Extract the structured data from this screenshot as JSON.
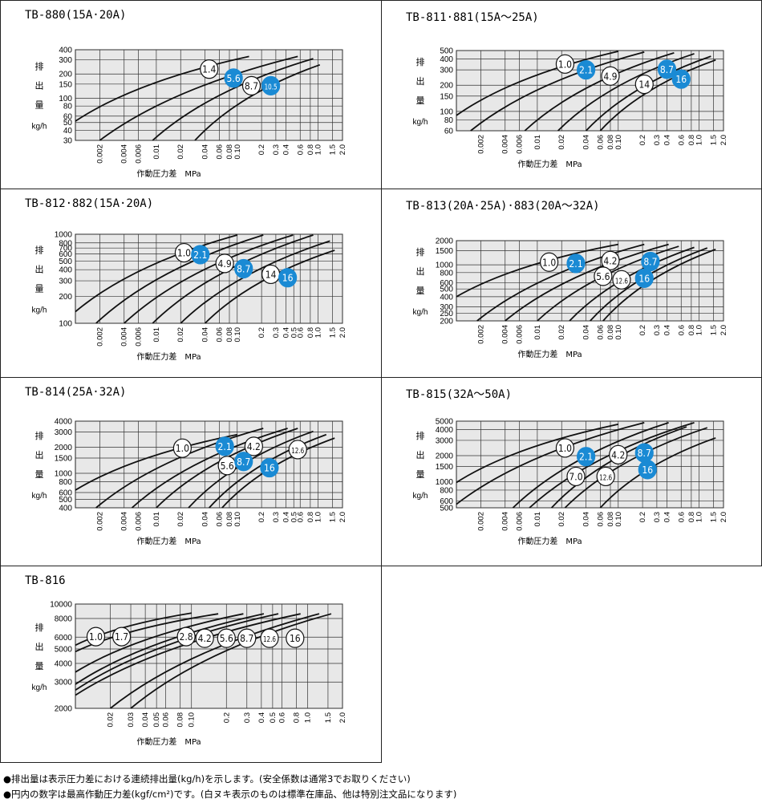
{
  "axis_label": "作動圧力差　MPa",
  "unit_label": "kg/h",
  "vlabel_chars": [
    "排",
    "出",
    "量"
  ],
  "colors": {
    "filled": "#1a8ad4",
    "grid_bg": "#e8e8e8",
    "curve": "#111111"
  },
  "notes": [
    "●排出量は表示圧力差における連続排出量(kg/h)を示します。(安全係数は通常3でお取りください)",
    "●円内の数字は最高作動圧力差(kgf/cm²)です。(白ヌキ表示のものは標準在庫品、他は特別注文品になります)"
  ],
  "chart_data": [
    {
      "type": "line",
      "title": "TB-880(15A·20A)",
      "xscale": "log",
      "yscale": "log",
      "xlim": [
        0.001,
        2.0
      ],
      "ylim": [
        30,
        400
      ],
      "xticks": [
        "0.002",
        "0.004",
        "0.006",
        "0.01",
        "0.02",
        "0.04",
        "0.06",
        "0.08",
        "0.10",
        "0.2",
        "0.3",
        "0.4",
        "0.6",
        "0.8",
        "1.0",
        "1.5",
        "2.0"
      ],
      "yticks": [
        30,
        40,
        50,
        60,
        80,
        100,
        150,
        200,
        300,
        400
      ],
      "xlabel": "作動圧力差　MPa",
      "ylabel": "排出量 kg/h",
      "series": [
        {
          "name": "1.4",
          "start": [
            0.001,
            52
          ],
          "end": [
            0.14,
            330
          ]
        },
        {
          "name": "5.6",
          "start": [
            0.002,
            30
          ],
          "end": [
            0.56,
            330
          ]
        },
        {
          "name": "8.7",
          "start": [
            0.009,
            30
          ],
          "end": [
            0.87,
            310
          ]
        },
        {
          "name": "10.5",
          "start": [
            0.03,
            30
          ],
          "end": [
            1.05,
            260
          ]
        }
      ],
      "badges": [
        {
          "label": "1.4",
          "x": 0.045,
          "y": 230,
          "filled": false
        },
        {
          "label": "5.6",
          "x": 0.09,
          "y": 178,
          "filled": true
        },
        {
          "label": "8.7",
          "x": 0.15,
          "y": 143,
          "filled": false
        },
        {
          "label": "10.5",
          "x": 0.26,
          "y": 143,
          "filled": true
        }
      ]
    },
    {
      "type": "line",
      "title": "TB-811·881(15A～25A)",
      "xscale": "log",
      "yscale": "log",
      "xlim": [
        0.001,
        2.0
      ],
      "ylim": [
        60,
        500
      ],
      "xticks": [
        "0.002",
        "0.004",
        "0.006",
        "0.01",
        "0.02",
        "0.04",
        "0.06",
        "0.08",
        "0.10",
        "0.2",
        "0.3",
        "0.4",
        "0.6",
        "0.8",
        "1.0",
        "1.5",
        "2.0"
      ],
      "yticks": [
        60,
        80,
        100,
        150,
        200,
        300,
        400,
        500
      ],
      "xlabel": "作動圧力差　MPa",
      "ylabel": "排出量 kg/h",
      "series": [
        {
          "name": "1.0",
          "start": [
            0.001,
            90
          ],
          "end": [
            0.1,
            490
          ]
        },
        {
          "name": "2.1",
          "start": [
            0.0015,
            60
          ],
          "end": [
            0.21,
            480
          ]
        },
        {
          "name": "4.9",
          "start": [
            0.007,
            60
          ],
          "end": [
            0.49,
            470
          ]
        },
        {
          "name": "8.7",
          "start": [
            0.018,
            60
          ],
          "end": [
            0.87,
            460
          ]
        },
        {
          "name": "14",
          "start": [
            0.04,
            60
          ],
          "end": [
            1.4,
            430
          ]
        },
        {
          "name": "16",
          "start": [
            0.06,
            60
          ],
          "end": [
            1.6,
            390
          ]
        }
      ],
      "badges": [
        {
          "label": "1.0",
          "x": 0.022,
          "y": 350,
          "filled": false
        },
        {
          "label": "2.1",
          "x": 0.04,
          "y": 300,
          "filled": true
        },
        {
          "label": "4.9",
          "x": 0.08,
          "y": 255,
          "filled": false
        },
        {
          "label": "8.7",
          "x": 0.4,
          "y": 305,
          "filled": true
        },
        {
          "label": "14",
          "x": 0.21,
          "y": 205,
          "filled": false
        },
        {
          "label": "16",
          "x": 0.6,
          "y": 235,
          "filled": true
        }
      ]
    },
    {
      "type": "line",
      "title": "TB-812·882(15A·20A)",
      "xscale": "log",
      "yscale": "log",
      "xlim": [
        0.001,
        2.0
      ],
      "ylim": [
        100,
        1000
      ],
      "xticks": [
        "0.002",
        "0.004",
        "0.006",
        "0.01",
        "0.02",
        "0.04",
        "0.06",
        "0.08",
        "0.10",
        "0.2",
        "0.3",
        "0.4",
        "0.5",
        "0.6",
        "0.8",
        "1.0",
        "1.5",
        "2.0"
      ],
      "yticks": [
        100,
        200,
        300,
        400,
        500,
        600,
        700,
        800,
        1000
      ],
      "xlabel": "作動圧力差　MPa",
      "ylabel": "排出量 kg/h",
      "series": [
        {
          "name": "1.0",
          "start": [
            0.001,
            135
          ],
          "end": [
            0.1,
            980
          ]
        },
        {
          "name": "2.1",
          "start": [
            0.0018,
            100
          ],
          "end": [
            0.21,
            980
          ]
        },
        {
          "name": "4.9",
          "start": [
            0.004,
            100
          ],
          "end": [
            0.49,
            980
          ]
        },
        {
          "name": "8.7",
          "start": [
            0.009,
            100
          ],
          "end": [
            0.87,
            980
          ]
        },
        {
          "name": "14",
          "start": [
            0.02,
            100
          ],
          "end": [
            1.4,
            840
          ]
        },
        {
          "name": "16",
          "start": [
            0.04,
            100
          ],
          "end": [
            1.6,
            660
          ]
        }
      ],
      "badges": [
        {
          "label": "1.0",
          "x": 0.022,
          "y": 620,
          "filled": false
        },
        {
          "label": "2.1",
          "x": 0.035,
          "y": 590,
          "filled": true
        },
        {
          "label": "4.9",
          "x": 0.07,
          "y": 470,
          "filled": false
        },
        {
          "label": "8.7",
          "x": 0.12,
          "y": 410,
          "filled": true
        },
        {
          "label": "14",
          "x": 0.26,
          "y": 355,
          "filled": false
        },
        {
          "label": "16",
          "x": 0.42,
          "y": 325,
          "filled": true
        }
      ]
    },
    {
      "type": "line",
      "title": "TB-813(20A·25A)·883(20A～32A)",
      "xscale": "log",
      "yscale": "log",
      "xlim": [
        0.001,
        2.0
      ],
      "ylim": [
        200,
        2000
      ],
      "xticks": [
        "0.002",
        "0.004",
        "0.006",
        "0.01",
        "0.02",
        "0.04",
        "0.06",
        "0.08",
        "0.10",
        "0.2",
        "0.3",
        "0.4",
        "0.6",
        "0.8",
        "1.0",
        "1.5",
        "2.0"
      ],
      "yticks": [
        200,
        250,
        300,
        400,
        500,
        600,
        800,
        1000,
        1500,
        2000
      ],
      "xlabel": "作動圧力差　MPa",
      "ylabel": "排出量 kg/h",
      "series": [
        {
          "name": "1.0",
          "start": [
            0.001,
            400
          ],
          "end": [
            0.1,
            1800
          ]
        },
        {
          "name": "2.1",
          "start": [
            0.0018,
            200
          ],
          "end": [
            0.21,
            1800
          ]
        },
        {
          "name": "4.2",
          "start": [
            0.004,
            200
          ],
          "end": [
            0.42,
            1800
          ]
        },
        {
          "name": "5.6",
          "start": [
            0.01,
            200
          ],
          "end": [
            0.56,
            1700
          ]
        },
        {
          "name": "8.7",
          "start": [
            0.025,
            200
          ],
          "end": [
            0.87,
            1650
          ]
        },
        {
          "name": "12.6",
          "start": [
            0.045,
            200
          ],
          "end": [
            1.26,
            1620
          ]
        },
        {
          "name": "16",
          "start": [
            0.065,
            200
          ],
          "end": [
            1.6,
            1560
          ]
        }
      ],
      "badges": [
        {
          "label": "1.0",
          "x": 0.014,
          "y": 1080,
          "filled": false
        },
        {
          "label": "2.1",
          "x": 0.03,
          "y": 1040,
          "filled": true
        },
        {
          "label": "4.2",
          "x": 0.08,
          "y": 1130,
          "filled": false
        },
        {
          "label": "8.7",
          "x": 0.25,
          "y": 1100,
          "filled": true
        },
        {
          "label": "5.6",
          "x": 0.065,
          "y": 720,
          "filled": false
        },
        {
          "label": "12.6",
          "x": 0.11,
          "y": 650,
          "filled": false
        },
        {
          "label": "16",
          "x": 0.21,
          "y": 680,
          "filled": true
        }
      ]
    },
    {
      "type": "line",
      "title": "TB-814(25A·32A)",
      "xscale": "log",
      "yscale": "log",
      "xlim": [
        0.001,
        2.0
      ],
      "ylim": [
        400,
        4000
      ],
      "xticks": [
        "0.002",
        "0.004",
        "0.006",
        "0.01",
        "0.02",
        "0.04",
        "0.06",
        "0.08",
        "0.10",
        "0.2",
        "0.3",
        "0.4",
        "0.5",
        "0.6",
        "0.8",
        "1.0",
        "1.5",
        "2.0"
      ],
      "yticks": [
        400,
        500,
        600,
        800,
        1000,
        1500,
        2000,
        3000,
        4000
      ],
      "xlabel": "作動圧力差　MPa",
      "ylabel": "排出量 kg/h",
      "series": [
        {
          "name": "1.0",
          "start": [
            0.001,
            640
          ],
          "end": [
            0.1,
            2800
          ]
        },
        {
          "name": "2.1",
          "start": [
            0.0018,
            400
          ],
          "end": [
            0.21,
            3300
          ]
        },
        {
          "name": "4.2",
          "start": [
            0.005,
            400
          ],
          "end": [
            0.42,
            3300
          ]
        },
        {
          "name": "5.6",
          "start": [
            0.01,
            400
          ],
          "end": [
            0.56,
            3300
          ]
        },
        {
          "name": "8.7",
          "start": [
            0.025,
            400
          ],
          "end": [
            0.87,
            3050
          ]
        },
        {
          "name": "12.6",
          "start": [
            0.045,
            400
          ],
          "end": [
            1.26,
            2800
          ]
        },
        {
          "name": "16",
          "start": [
            0.065,
            400
          ],
          "end": [
            1.6,
            2550
          ]
        }
      ],
      "badges": [
        {
          "label": "1.0",
          "x": 0.021,
          "y": 1950,
          "filled": false
        },
        {
          "label": "2.1",
          "x": 0.07,
          "y": 2050,
          "filled": true
        },
        {
          "label": "4.2",
          "x": 0.16,
          "y": 2050,
          "filled": false
        },
        {
          "label": "12.6",
          "x": 0.56,
          "y": 1880,
          "filled": false
        },
        {
          "label": "5.6",
          "x": 0.075,
          "y": 1230,
          "filled": false
        },
        {
          "label": "8.7",
          "x": 0.12,
          "y": 1370,
          "filled": true
        },
        {
          "label": "16",
          "x": 0.25,
          "y": 1160,
          "filled": true
        }
      ]
    },
    {
      "type": "line",
      "title": "TB-815(32A～50A)",
      "xscale": "log",
      "yscale": "log",
      "xlim": [
        0.001,
        2.0
      ],
      "ylim": [
        500,
        5000
      ],
      "xticks": [
        "0.002",
        "0.004",
        "0.006",
        "0.01",
        "0.02",
        "0.04",
        "0.06",
        "0.08",
        "0.10",
        "0.2",
        "0.3",
        "0.4",
        "0.6",
        "0.8",
        "1.0",
        "1.5",
        "2.0"
      ],
      "yticks": [
        500,
        600,
        800,
        1000,
        1500,
        2000,
        3000,
        4000,
        5000
      ],
      "xlabel": "作動圧力差　MPa",
      "ylabel": "排出量 kg/h",
      "series": [
        {
          "name": "1.0",
          "start": [
            0.001,
            980
          ],
          "end": [
            0.1,
            4600
          ]
        },
        {
          "name": "2.1",
          "start": [
            0.001,
            550
          ],
          "end": [
            0.21,
            4800
          ]
        },
        {
          "name": "4.2",
          "start": [
            0.005,
            500
          ],
          "end": [
            0.42,
            4800
          ]
        },
        {
          "name": "8.7",
          "start": [
            0.008,
            500
          ],
          "end": [
            0.87,
            4800
          ]
        },
        {
          "name": "7.0",
          "start": [
            0.015,
            500
          ],
          "end": [
            0.7,
            4300
          ]
        },
        {
          "name": "12.6",
          "start": [
            0.022,
            500
          ],
          "end": [
            1.26,
            4200
          ]
        },
        {
          "name": "16",
          "start": [
            0.06,
            500
          ],
          "end": [
            1.6,
            3200
          ]
        }
      ],
      "badges": [
        {
          "label": "1.0",
          "x": 0.022,
          "y": 2450,
          "filled": false
        },
        {
          "label": "2.1",
          "x": 0.04,
          "y": 1950,
          "filled": true
        },
        {
          "label": "4.2",
          "x": 0.1,
          "y": 2050,
          "filled": false
        },
        {
          "label": "8.7",
          "x": 0.21,
          "y": 2150,
          "filled": true
        },
        {
          "label": "7.0",
          "x": 0.03,
          "y": 1150,
          "filled": false
        },
        {
          "label": "12.6",
          "x": 0.07,
          "y": 1150,
          "filled": false
        },
        {
          "label": "16",
          "x": 0.23,
          "y": 1380,
          "filled": true
        }
      ]
    },
    {
      "type": "line",
      "title": "TB-816",
      "xscale": "log",
      "yscale": "log",
      "xlim": [
        0.01,
        2.0
      ],
      "ylim": [
        2000,
        10000
      ],
      "xticks": [
        "0.02",
        "0.03",
        "0.04",
        "0.05",
        "0.06",
        "0.08",
        "0.10",
        "0.2",
        "0.3",
        "0.4",
        "0.5",
        "0.6",
        "0.8",
        "1.0",
        "1.5",
        "2.0"
      ],
      "yticks": [
        2000,
        3000,
        4000,
        5000,
        6000,
        8000,
        10000
      ],
      "xlabel": "作動圧力差　MPa",
      "ylabel": "排出量 kg/h",
      "series": [
        {
          "name": "1.0",
          "start": [
            0.01,
            5300
          ],
          "end": [
            0.1,
            8700
          ]
        },
        {
          "name": "1.7",
          "start": [
            0.01,
            4800
          ],
          "end": [
            0.17,
            8600
          ]
        },
        {
          "name": "2.8",
          "start": [
            0.01,
            3500
          ],
          "end": [
            0.28,
            8600
          ]
        },
        {
          "name": "4.2",
          "start": [
            0.01,
            2900
          ],
          "end": [
            0.42,
            8600
          ]
        },
        {
          "name": "5.6",
          "start": [
            0.01,
            2650
          ],
          "end": [
            0.56,
            8600
          ]
        },
        {
          "name": "8.7",
          "start": [
            0.01,
            2450
          ],
          "end": [
            0.87,
            8600
          ]
        },
        {
          "name": "12.6",
          "start": [
            0.02,
            2000
          ],
          "end": [
            1.26,
            8600
          ]
        },
        {
          "name": "16",
          "start": [
            0.03,
            2000
          ],
          "end": [
            1.6,
            8600
          ]
        }
      ],
      "badges": [
        {
          "label": "1.0",
          "x": 0.015,
          "y": 6050,
          "filled": false
        },
        {
          "label": "1.7",
          "x": 0.025,
          "y": 6050,
          "filled": false
        },
        {
          "label": "2.8",
          "x": 0.09,
          "y": 6050,
          "filled": false
        },
        {
          "label": "4.2",
          "x": 0.13,
          "y": 5900,
          "filled": false
        },
        {
          "label": "5.6",
          "x": 0.2,
          "y": 5900,
          "filled": false
        },
        {
          "label": "8.7",
          "x": 0.3,
          "y": 5900,
          "filled": false
        },
        {
          "label": "12.6",
          "x": 0.47,
          "y": 5900,
          "filled": false
        },
        {
          "label": "16",
          "x": 0.78,
          "y": 5900,
          "filled": false
        }
      ]
    }
  ]
}
